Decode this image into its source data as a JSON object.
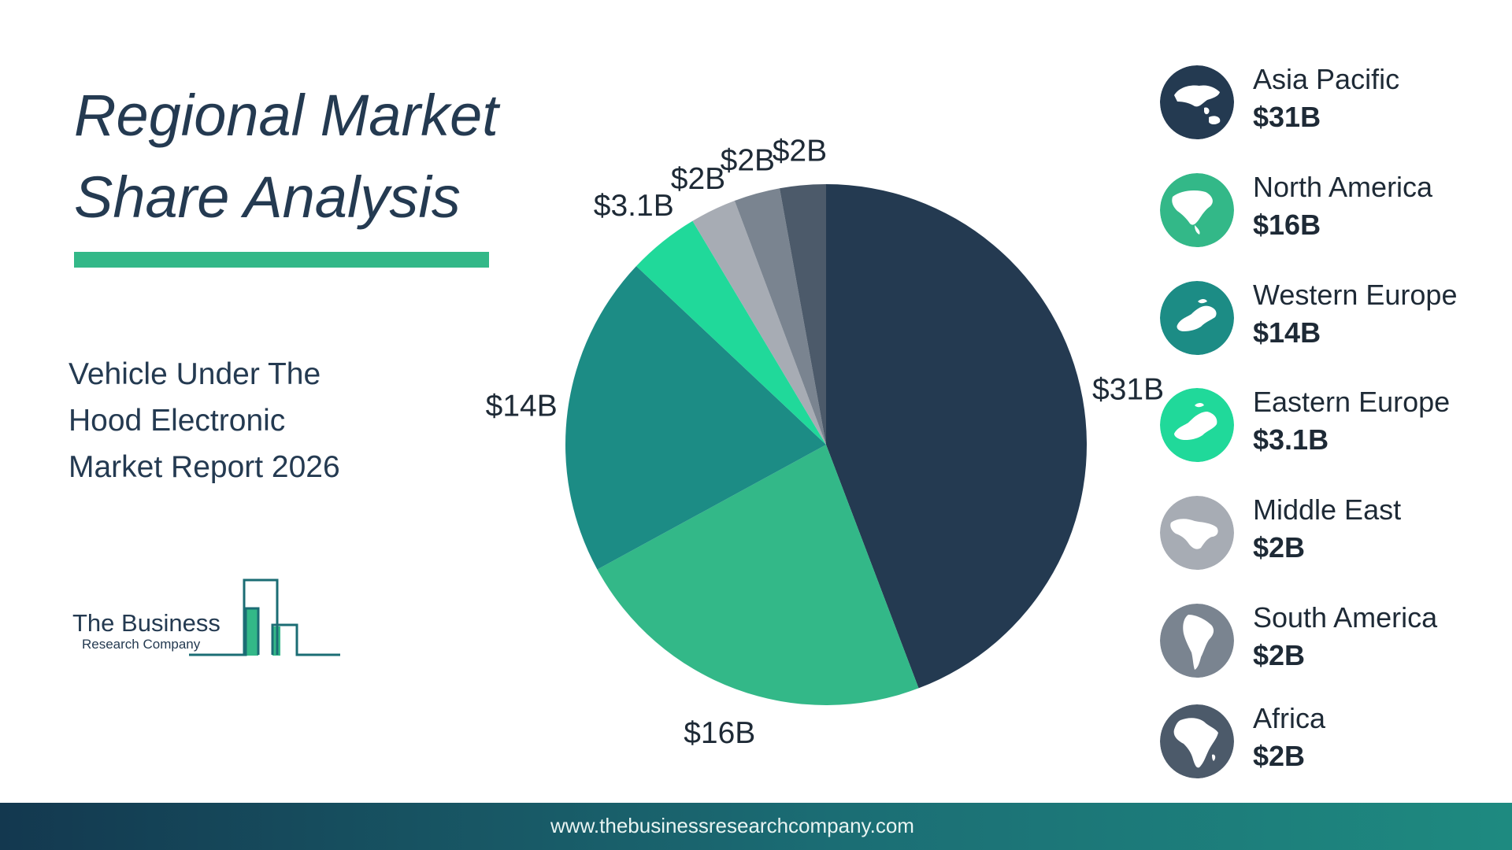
{
  "page": {
    "title_line1": "Regional Market",
    "title_line2": "Share Analysis",
    "subtitle_line1": "Vehicle Under The",
    "subtitle_line2": "Hood Electronic",
    "subtitle_line3": "Market Report 2026",
    "logo_name": "The Business",
    "logo_sub": "Research Company",
    "footer_url": "www.thebusinessresearchcompany.com"
  },
  "colors": {
    "title": "#243a51",
    "accent_bar": "#33b888",
    "footer_start": "#13384f",
    "footer_end": "#1e8a80"
  },
  "chart_data": {
    "type": "pie",
    "start_angle": 0,
    "direction": "clockwise",
    "slices": [
      {
        "name": "Asia Pacific",
        "value": 31,
        "label": "$31B",
        "color": "#243a51",
        "icon": "asia-pacific-globe-icon"
      },
      {
        "name": "North America",
        "value": 16,
        "label": "$16B",
        "color": "#33b888",
        "icon": "north-america-globe-icon"
      },
      {
        "name": "Western Europe",
        "value": 14,
        "label": "$14B",
        "color": "#1c8c85",
        "icon": "western-europe-globe-icon"
      },
      {
        "name": "Eastern Europe",
        "value": 3.1,
        "label": "$3.1B",
        "color": "#20d99a",
        "icon": "eastern-europe-globe-icon"
      },
      {
        "name": "Middle East",
        "value": 2,
        "label": "$2B",
        "color": "#a7acb4",
        "icon": "middle-east-globe-icon"
      },
      {
        "name": "South America",
        "value": 2,
        "label": "$2B",
        "color": "#7a8490",
        "icon": "south-america-globe-icon"
      },
      {
        "name": "Africa",
        "value": 2,
        "label": "$2B",
        "color": "#4c5a6a",
        "icon": "africa-globe-icon"
      }
    ]
  }
}
